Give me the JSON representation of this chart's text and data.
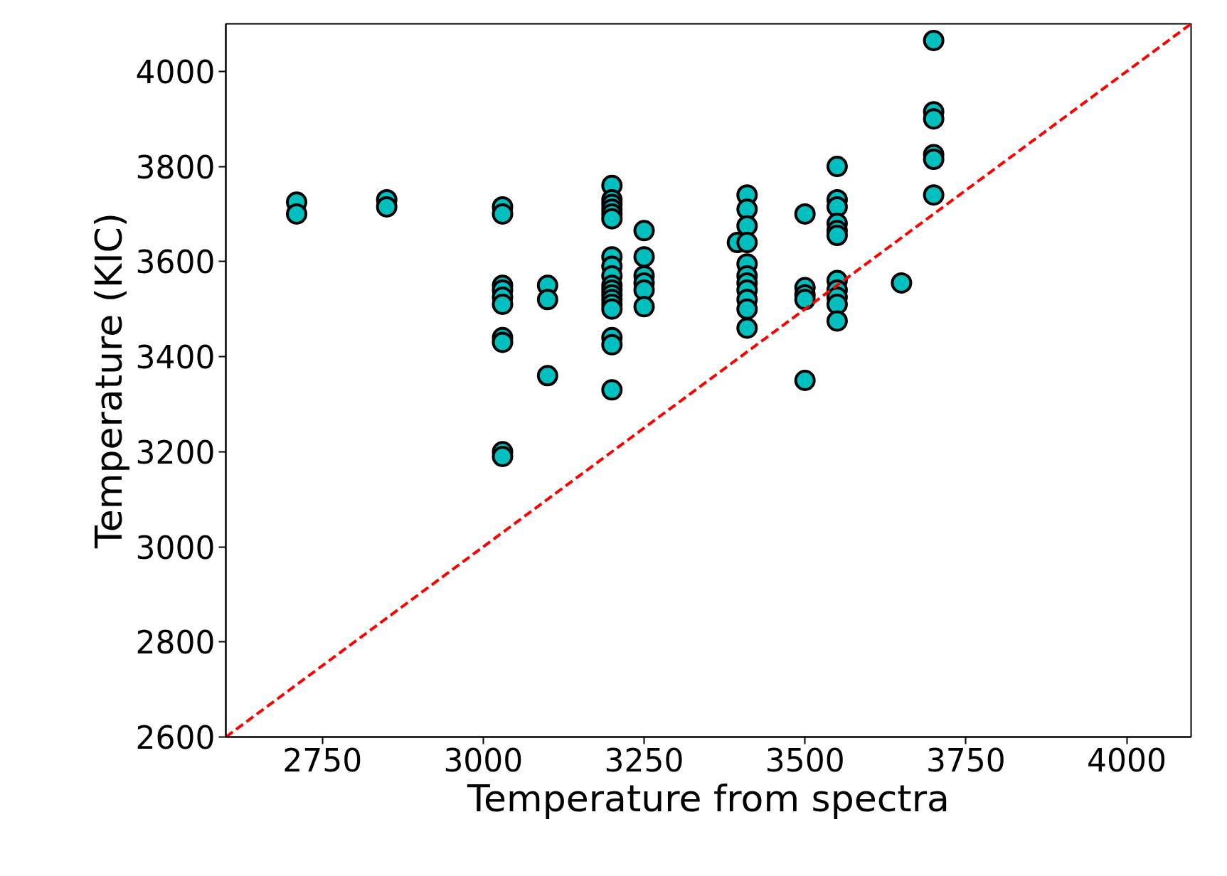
{
  "chart_data": {
    "type": "scatter",
    "xlabel": "Temperature from spectra",
    "ylabel": "Temperature (KIC)",
    "xlim": [
      2600,
      4100
    ],
    "ylim": [
      2600,
      4100
    ],
    "xticks": [
      2750,
      3000,
      3250,
      3500,
      3750,
      4000
    ],
    "yticks": [
      2600,
      2800,
      3000,
      3200,
      3400,
      3600,
      3800,
      4000
    ],
    "grid": false,
    "series": [
      {
        "color": "#00bfbf",
        "marker": "circle",
        "x": [
          2710,
          2710,
          2850,
          2850,
          3030,
          3030,
          3030,
          3030,
          3030,
          3030,
          3030,
          3030,
          3030,
          3030,
          3100,
          3100,
          3100,
          3200,
          3200,
          3200,
          3200,
          3200,
          3200,
          3200,
          3200,
          3200,
          3200,
          3200,
          3200,
          3200,
          3200,
          3200,
          3200,
          3200,
          3200,
          3250,
          3250,
          3250,
          3250,
          3250,
          3250,
          3395,
          3410,
          3410,
          3410,
          3410,
          3410,
          3410,
          3410,
          3410,
          3410,
          3410,
          3410,
          3500,
          3500,
          3500,
          3500,
          3500,
          3550,
          3550,
          3550,
          3550,
          3550,
          3550,
          3550,
          3550,
          3550,
          3550,
          3550,
          3650,
          3700,
          3700,
          3700,
          3700,
          3700,
          3700
        ],
        "values": [
          3725,
          3700,
          3730,
          3715,
          3715,
          3700,
          3550,
          3540,
          3525,
          3510,
          3440,
          3430,
          3200,
          3190,
          3550,
          3520,
          3360,
          3760,
          3730,
          3720,
          3710,
          3700,
          3690,
          3610,
          3590,
          3570,
          3550,
          3540,
          3530,
          3520,
          3510,
          3500,
          3440,
          3425,
          3330,
          3665,
          3610,
          3570,
          3555,
          3540,
          3505,
          3640,
          3740,
          3710,
          3675,
          3640,
          3595,
          3570,
          3555,
          3540,
          3520,
          3500,
          3460,
          3700,
          3545,
          3530,
          3520,
          3350,
          3800,
          3730,
          3715,
          3680,
          3665,
          3655,
          3560,
          3540,
          3525,
          3510,
          3475,
          3555,
          4065,
          3915,
          3900,
          3825,
          3815,
          3740
        ]
      },
      {
        "type": "line",
        "color": "#ff0000",
        "line_style": "dashed",
        "x": [
          2600,
          4100
        ],
        "values": [
          2600,
          4100
        ]
      }
    ]
  }
}
